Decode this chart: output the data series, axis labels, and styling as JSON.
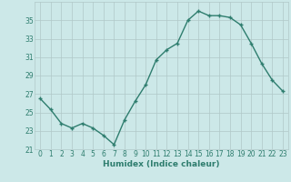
{
  "x": [
    0,
    1,
    2,
    3,
    4,
    5,
    6,
    7,
    8,
    9,
    10,
    11,
    12,
    13,
    14,
    15,
    16,
    17,
    18,
    19,
    20,
    21,
    22,
    23
  ],
  "y": [
    26.5,
    25.3,
    23.8,
    23.3,
    23.8,
    23.3,
    22.5,
    21.5,
    24.2,
    26.2,
    28.0,
    30.7,
    31.8,
    32.5,
    35.0,
    36.0,
    35.5,
    35.5,
    35.3,
    34.5,
    32.5,
    30.3,
    28.5,
    27.3
  ],
  "line_color": "#2e7d6e",
  "marker": "+",
  "marker_size": 3,
  "line_width": 1.0,
  "bg_color": "#cce8e8",
  "grid_color": "#b0c8c8",
  "xlabel": "Humidex (Indice chaleur)",
  "xlim": [
    -0.5,
    23.5
  ],
  "ylim": [
    21,
    37
  ],
  "yticks": [
    21,
    23,
    25,
    27,
    29,
    31,
    33,
    35
  ],
  "xticks": [
    0,
    1,
    2,
    3,
    4,
    5,
    6,
    7,
    8,
    9,
    10,
    11,
    12,
    13,
    14,
    15,
    16,
    17,
    18,
    19,
    20,
    21,
    22,
    23
  ],
  "tick_color": "#2e7d6e",
  "label_color": "#2e7d6e",
  "tick_fontsize": 5.5,
  "xlabel_fontsize": 6.5
}
